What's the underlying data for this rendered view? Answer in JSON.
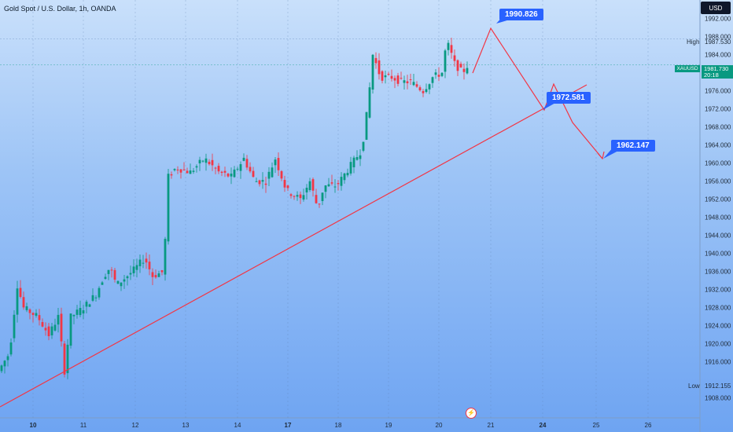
{
  "header": {
    "symbol_line": "Gold Spot / U.S. Dollar, 1h, OANDA",
    "currency": "USD"
  },
  "chart_data": {
    "type": "candlestick",
    "ylim": [
      1904,
      1994
    ],
    "y_ticks": [
      "1992.000",
      "1988.000",
      "1984.000",
      "1980.000",
      "1976.000",
      "1972.000",
      "1968.000",
      "1964.000",
      "1960.000",
      "1956.000",
      "1952.000",
      "1948.000",
      "1944.000",
      "1940.000",
      "1936.000",
      "1932.000",
      "1928.000",
      "1924.000",
      "1920.000",
      "1916.000",
      "1908.000"
    ],
    "x_ticks": [
      {
        "label": "10",
        "bold": true
      },
      {
        "label": "11",
        "bold": false
      },
      {
        "label": "12",
        "bold": false
      },
      {
        "label": "13",
        "bold": false
      },
      {
        "label": "14",
        "bold": false
      },
      {
        "label": "17",
        "bold": true
      },
      {
        "label": "18",
        "bold": false
      },
      {
        "label": "19",
        "bold": false
      },
      {
        "label": "20",
        "bold": false
      },
      {
        "label": "21",
        "bold": false
      },
      {
        "label": "24",
        "bold": true
      },
      {
        "label": "25",
        "bold": false
      },
      {
        "label": "26",
        "bold": false
      }
    ],
    "high": {
      "label": "High",
      "value": "1987.530"
    },
    "low": {
      "label": "Low",
      "value": "1912.155"
    },
    "current": {
      "symbol": "XAUUSD",
      "price": "1981.730",
      "countdown": "20:18"
    },
    "callouts": [
      "1990.826",
      "1972.581",
      "1962.147"
    ],
    "colors": {
      "up": "#089981",
      "down": "#f23645",
      "trendline": "#f23645",
      "projection": "#f23645",
      "callout": "#2962ff"
    }
  },
  "colors": {
    "label_bg": "#2962ff",
    "current_bg": "#089981"
  }
}
